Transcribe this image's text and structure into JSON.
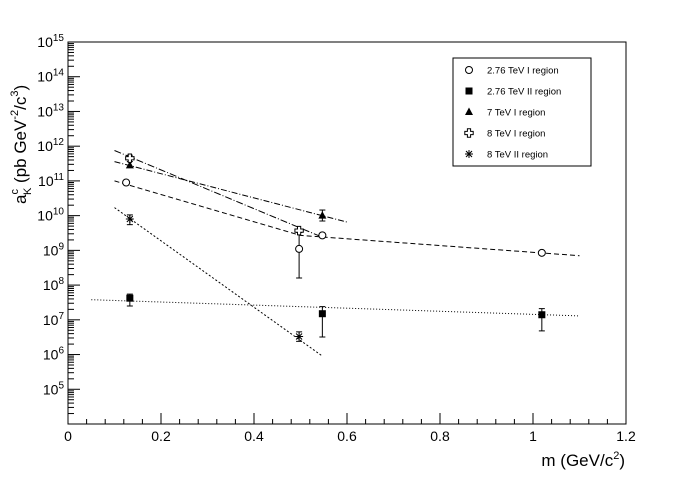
{
  "chart_data": {
    "type": "scatter",
    "title": "",
    "xlabel": "m (GeV/c²)",
    "xlabel_parts": {
      "main": "m (GeV/c",
      "sup": "2",
      "close": ")"
    },
    "ylabel": "aᴷᶜ (pb GeV⁻²/c³)",
    "ylabel_parts": {
      "a": "a",
      "sup_c": "c",
      "sub_K": "K",
      "mid": " (pb GeV",
      "sup_m2": "-2",
      "slash": "/c",
      "sup_3": "3",
      "close": ")"
    },
    "xlim": [
      0,
      1.2
    ],
    "ylim_log10": [
      4,
      15
    ],
    "y_scale": "log",
    "x_ticks": [
      0,
      0.2,
      0.4,
      0.6,
      0.8,
      1.0,
      1.2
    ],
    "x_tick_labels": [
      "0",
      "0.2",
      "0.4",
      "0.6",
      "0.8",
      "1",
      "1.2"
    ],
    "y_tick_exponents": [
      5,
      6,
      7,
      8,
      9,
      10,
      11,
      12,
      13,
      14,
      15
    ],
    "y_tick_base": "10",
    "legend_position": "top-right",
    "series": [
      {
        "name": "2.76 TeV I region",
        "marker": "open-circle",
        "points": [
          {
            "x": 0.125,
            "y": 90000000000.0
          },
          {
            "x": 0.497,
            "y": 1100000000.0,
            "y_lo": 160000000.0,
            "y_hi": 3300000000.0
          },
          {
            "x": 0.547,
            "y": 2700000000.0
          },
          {
            "x": 1.019,
            "y": 850000000.0
          }
        ],
        "fit": {
          "x": [
            0.1,
            0.5,
            1.1
          ],
          "y": [
            100000000000.0,
            2700000000.0,
            700000000.0
          ],
          "dash": "5,3"
        }
      },
      {
        "name": "2.76 TeV II region",
        "marker": "filled-square",
        "points": [
          {
            "x": 0.133,
            "y": 42000000.0,
            "y_lo": 25000000.0,
            "y_hi": 55000000.0
          },
          {
            "x": 0.547,
            "y": 15000000.0,
            "y_lo": 3200000.0,
            "y_hi": 24000000.0
          },
          {
            "x": 1.019,
            "y": 14000000.0,
            "y_lo": 4800000.0,
            "y_hi": 21000000.0
          }
        ],
        "fit": {
          "x": [
            0.05,
            1.1
          ],
          "y": [
            38000000.0,
            13000000.0
          ],
          "dash": "1,2"
        }
      },
      {
        "name": "7 TeV I region",
        "marker": "filled-triangle",
        "points": [
          {
            "x": 0.133,
            "y": 280000000000.0
          },
          {
            "x": 0.547,
            "y": 10000000000.0,
            "y_lo": 7000000000.0,
            "y_hi": 14500000000.0
          }
        ],
        "fit": {
          "x": [
            0.1,
            0.6
          ],
          "y": [
            360000000000.0,
            6500000000.0
          ],
          "dash": "6,2,1,2"
        }
      },
      {
        "name": "8 TeV I region",
        "marker": "open-cross",
        "points": [
          {
            "x": 0.133,
            "y": 450000000000.0,
            "y_lo": 360000000000.0,
            "y_hi": 550000000000.0
          },
          {
            "x": 0.497,
            "y": 3700000000.0
          }
        ],
        "fit": {
          "x": [
            0.1,
            0.55
          ],
          "y": [
            750000000000.0,
            2300000000.0
          ],
          "dash": "7,2,1,2"
        }
      },
      {
        "name": "8 TeV II region",
        "marker": "asterisk",
        "points": [
          {
            "x": 0.133,
            "y": 8000000000.0,
            "y_lo": 5500000000.0,
            "y_hi": 10500000000.0
          },
          {
            "x": 0.497,
            "y": 3300000.0,
            "y_lo": 2400000.0,
            "y_hi": 4500000.0
          }
        ],
        "fit": {
          "x": [
            0.1,
            0.547
          ],
          "y": [
            17000000000.0,
            900000.0
          ],
          "dash": "2,2"
        }
      }
    ]
  }
}
